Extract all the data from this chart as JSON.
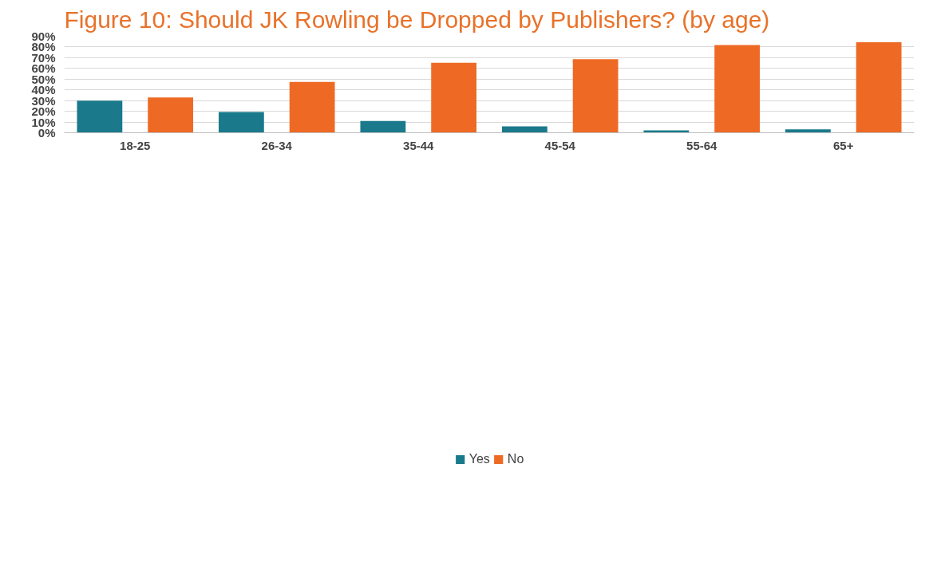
{
  "chart_data": {
    "type": "bar",
    "title": "Figure 10: Should JK Rowling be Dropped by Publishers? (by age)",
    "categories": [
      "18-25",
      "26-34",
      "35-44",
      "45-54",
      "55-64",
      "65+"
    ],
    "series": [
      {
        "name": "Yes",
        "color": "#1a7a8c",
        "values": [
          30,
          19.4,
          11,
          5.9,
          2.2,
          3.1
        ]
      },
      {
        "name": "No",
        "color": "#ee6a24",
        "values": [
          33,
          47.5,
          65.3,
          68.6,
          81.8,
          84.5
        ]
      }
    ],
    "ylim": [
      0,
      90
    ],
    "yticks": [
      {
        "value": 0,
        "label": "0%"
      },
      {
        "value": 10,
        "label": "10%"
      },
      {
        "value": 20,
        "label": "20%"
      },
      {
        "value": 30,
        "label": "30%"
      },
      {
        "value": 40,
        "label": "40%"
      },
      {
        "value": 50,
        "label": "50%"
      },
      {
        "value": 60,
        "label": "60%"
      },
      {
        "value": 70,
        "label": "70%"
      },
      {
        "value": 80,
        "label": "80%"
      },
      {
        "value": 90,
        "label": "90%"
      }
    ],
    "grid": "y",
    "legend": "bottom"
  }
}
